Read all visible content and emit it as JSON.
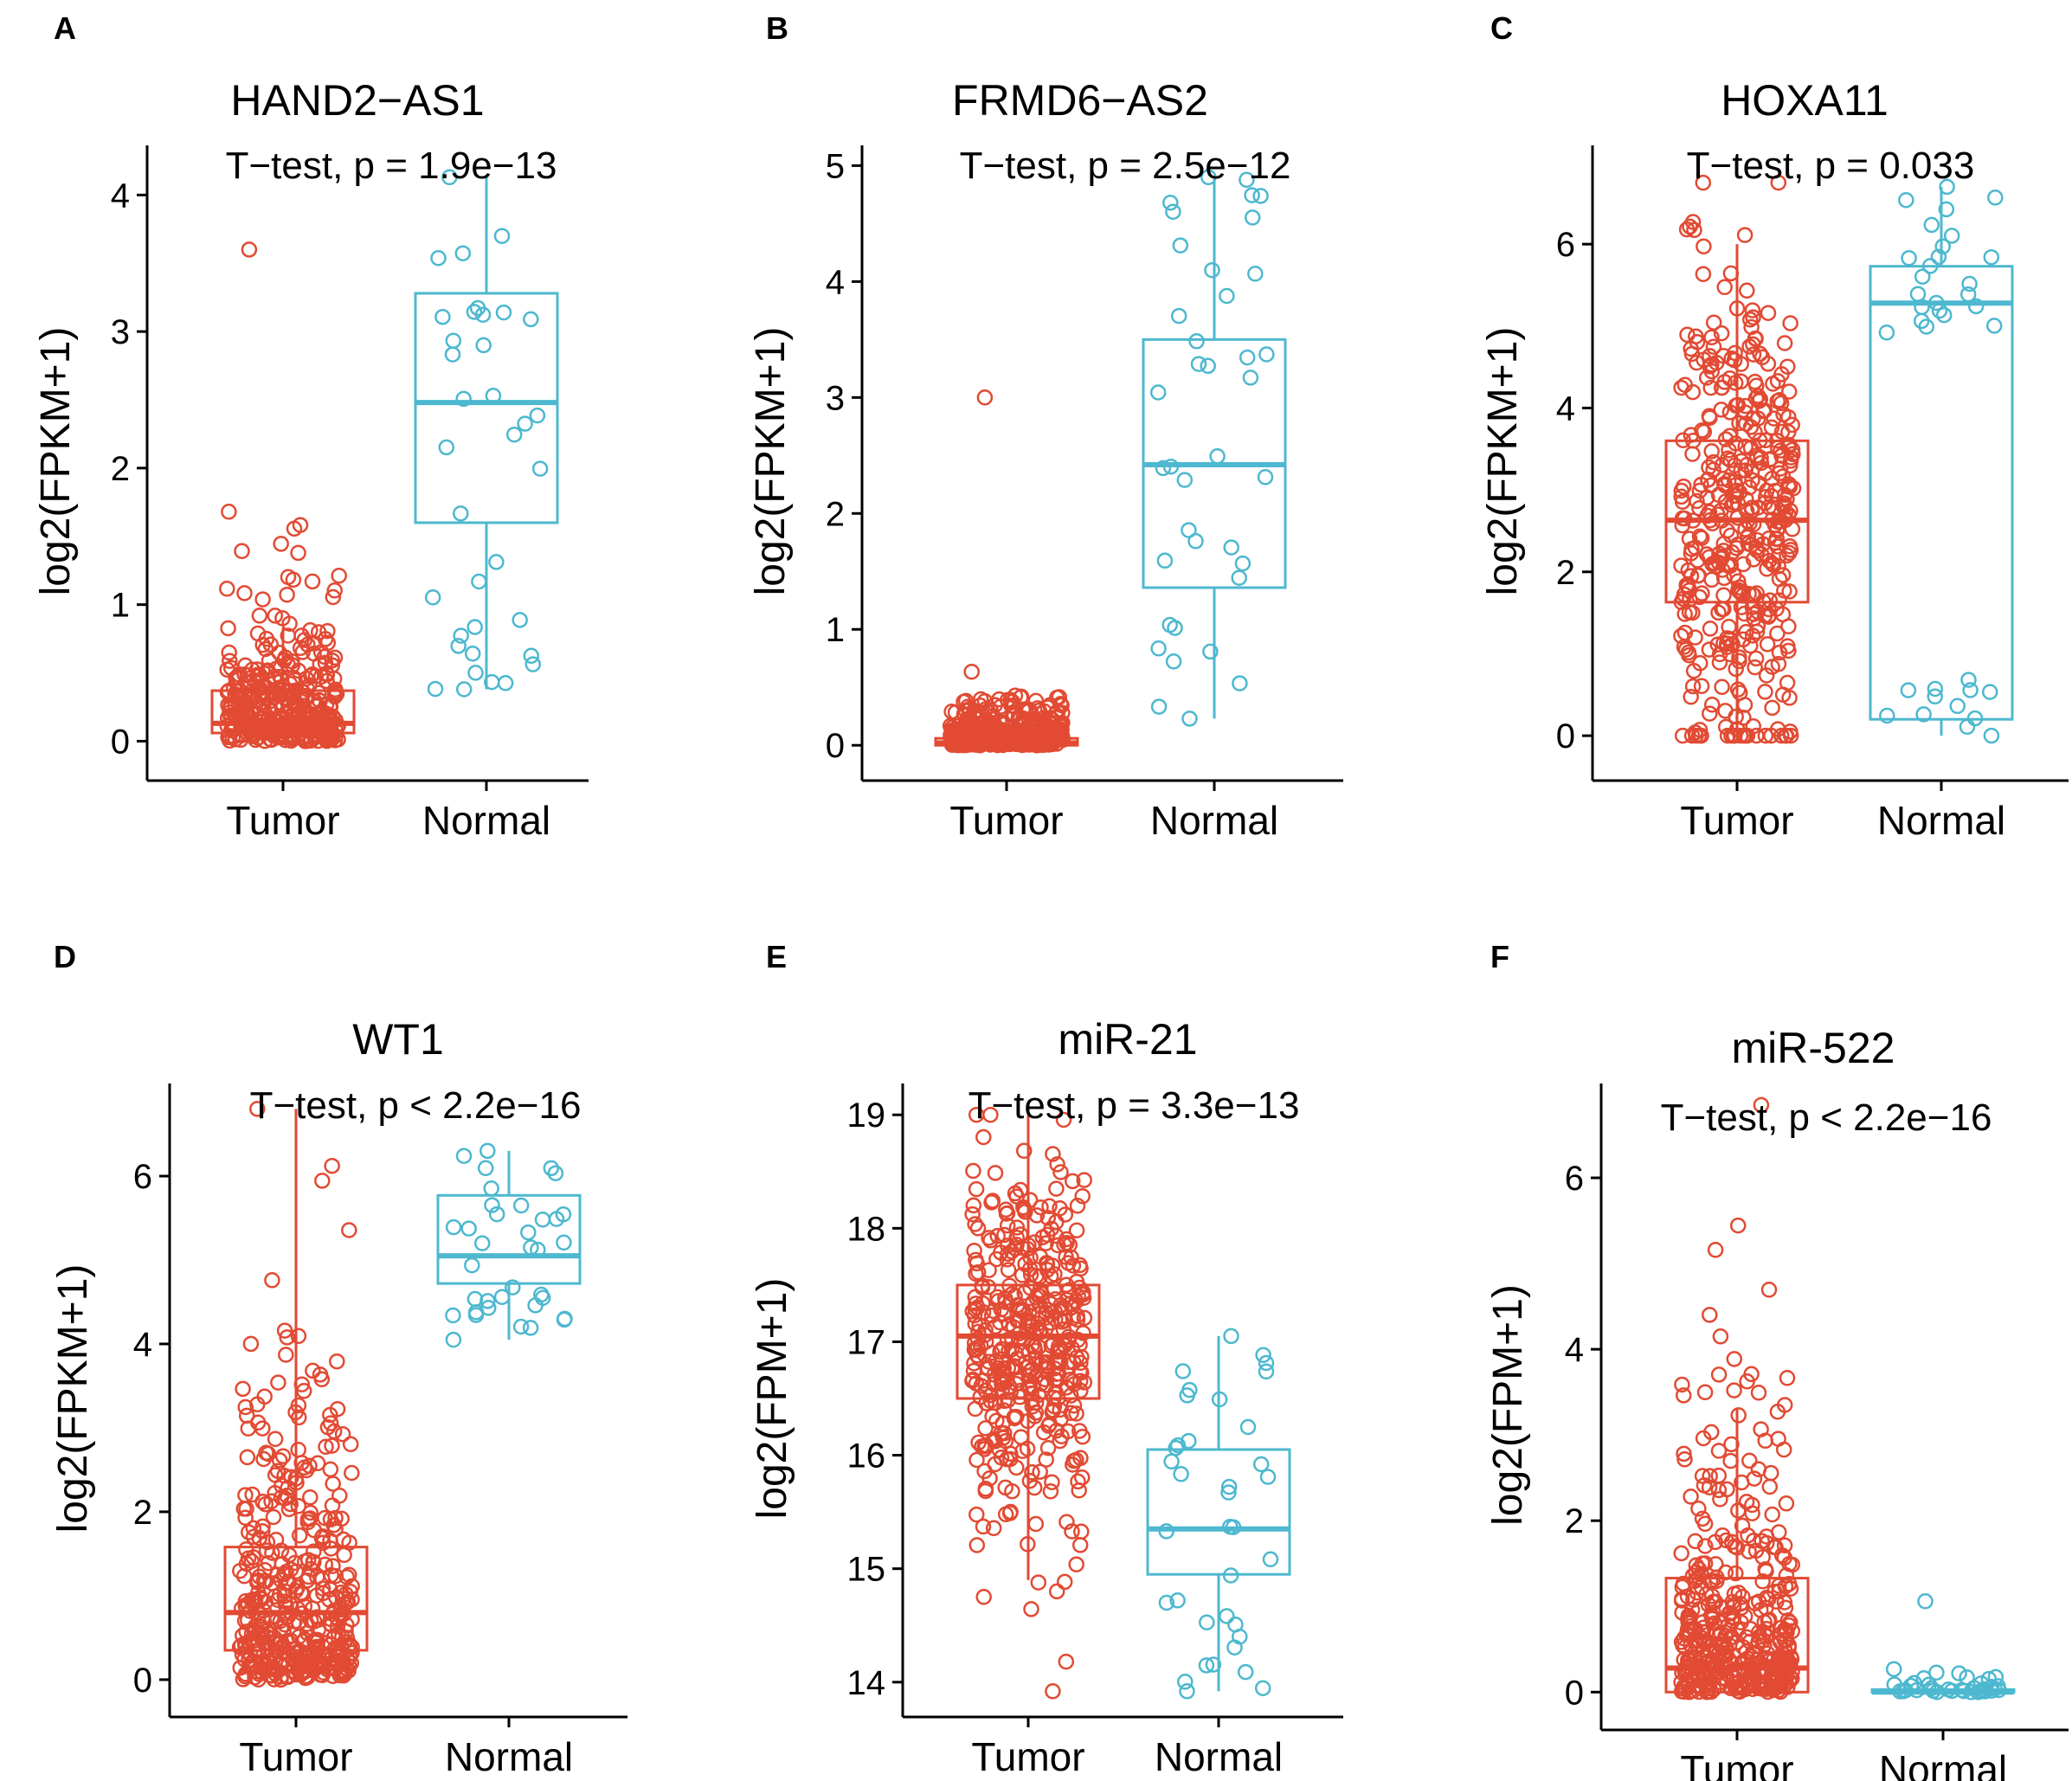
{
  "colors": {
    "tumor": "#E24A33",
    "normal": "#4DB8CF",
    "axis": "#000000"
  },
  "chart_data": [
    {
      "panel_label": "A",
      "type": "box-jitter",
      "title": "HAND2−AS1",
      "annotation": "T−test, p = 1.9e−13",
      "ylabel": "log2(FPKM+1)",
      "ylim": [
        -0.2,
        4.3
      ],
      "yticks": [
        0,
        1,
        2,
        3,
        4
      ],
      "ytick_labels": [
        "0",
        "1",
        "2",
        "3",
        "4"
      ],
      "categories": [
        "Tumor",
        "Normal"
      ],
      "series": [
        {
          "name": "Tumor",
          "color": "tumor",
          "q1": 0.06,
          "median": 0.13,
          "q3": 0.37,
          "whisker_low": 0,
          "whisker_high": 0.83,
          "n": 380,
          "dist": "exp",
          "dist_scale": 0.3,
          "max_point": 3.6,
          "min_point": 0
        },
        {
          "name": "Normal",
          "color": "normal",
          "q1": 1.6,
          "median": 2.48,
          "q3": 3.28,
          "whisker_low": 0.38,
          "whisker_high": 4.13,
          "n": 36,
          "dist": "uniform",
          "max_point": 4.13,
          "min_point": 0.38
        }
      ]
    },
    {
      "panel_label": "B",
      "type": "box-jitter",
      "title": "FRMD6−AS2",
      "annotation": "T−test, p = 2.5e−12",
      "ylabel": "log2(FPKM+1)",
      "ylim": [
        -0.2,
        5.1
      ],
      "yticks": [
        0,
        1,
        2,
        3,
        4,
        5
      ],
      "ytick_labels": [
        "0",
        "1",
        "2",
        "3",
        "4",
        "5"
      ],
      "categories": [
        "Tumor",
        "Normal"
      ],
      "series": [
        {
          "name": "Tumor",
          "color": "tumor",
          "q1": 0.0,
          "median": 0.02,
          "q3": 0.06,
          "whisker_low": 0,
          "whisker_high": 0.15,
          "n": 380,
          "dist": "exp",
          "dist_scale": 0.12,
          "max_point": 3.0,
          "min_point": 0
        },
        {
          "name": "Normal",
          "color": "normal",
          "q1": 1.36,
          "median": 2.42,
          "q3": 3.5,
          "whisker_low": 0.23,
          "whisker_high": 4.9,
          "n": 38,
          "dist": "uniform",
          "max_point": 4.9,
          "min_point": 0.23
        }
      ]
    },
    {
      "panel_label": "C",
      "type": "box-jitter",
      "title": "HOXA11",
      "annotation": "T−test, p = 0.033",
      "ylabel": "log2(FPKM+1)",
      "ylim": [
        -0.4,
        7.1
      ],
      "yticks": [
        0,
        2,
        4,
        6
      ],
      "ytick_labels": [
        "0",
        "2",
        "4",
        "6"
      ],
      "categories": [
        "Tumor",
        "Normal"
      ],
      "series": [
        {
          "name": "Tumor",
          "color": "tumor",
          "q1": 1.63,
          "median": 2.63,
          "q3": 3.6,
          "whisker_low": 0,
          "whisker_high": 6.0,
          "n": 420,
          "dist": "normal",
          "dist_mu": 2.6,
          "dist_sd": 1.5,
          "max_point": 6.75,
          "min_point": 0
        },
        {
          "name": "Normal",
          "color": "normal",
          "q1": 0.2,
          "median": 5.28,
          "q3": 5.73,
          "whisker_low": 0,
          "whisker_high": 6.7,
          "n": 36,
          "dist": "bimodal",
          "max_point": 6.7,
          "min_point": 0
        }
      ]
    },
    {
      "panel_label": "D",
      "type": "box-jitter",
      "title": "WT1",
      "annotation": "T−test, p < 2.2e−16",
      "ylabel": "log2(FPKM+1)",
      "ylim": [
        -0.3,
        7.0
      ],
      "yticks": [
        0,
        2,
        4,
        6
      ],
      "ytick_labels": [
        "0",
        "2",
        "4",
        "6"
      ],
      "categories": [
        "Tumor",
        "Normal"
      ],
      "series": [
        {
          "name": "Tumor",
          "color": "tumor",
          "q1": 0.35,
          "median": 0.8,
          "q3": 1.58,
          "whisker_low": 0,
          "whisker_high": 6.8,
          "n": 420,
          "dist": "exp",
          "dist_scale": 1.1,
          "max_point": 6.8,
          "min_point": 0
        },
        {
          "name": "Normal",
          "color": "normal",
          "q1": 4.72,
          "median": 5.05,
          "q3": 5.77,
          "whisker_low": 4.05,
          "whisker_high": 6.3,
          "n": 36,
          "dist": "uniform",
          "max_point": 6.3,
          "min_point": 4.05
        }
      ]
    },
    {
      "panel_label": "E",
      "type": "box-jitter",
      "title": "miR-21",
      "annotation": "T−test, p = 3.3e−13",
      "ylabel": "log2(FPM+1)",
      "ylim": [
        13.8,
        19.2
      ],
      "yticks": [
        14,
        15,
        16,
        17,
        18,
        19
      ],
      "ytick_labels": [
        "14",
        "15",
        "16",
        "17",
        "18",
        "19"
      ],
      "categories": [
        "Tumor",
        "Normal"
      ],
      "series": [
        {
          "name": "Tumor",
          "color": "tumor",
          "q1": 16.5,
          "median": 17.05,
          "q3": 17.5,
          "whisker_low": 14.9,
          "whisker_high": 19.0,
          "n": 420,
          "dist": "normal",
          "dist_mu": 17.0,
          "dist_sd": 0.75,
          "max_point": 19.0,
          "min_point": 13.92
        },
        {
          "name": "Normal",
          "color": "normal",
          "q1": 14.95,
          "median": 15.35,
          "q3": 16.05,
          "whisker_low": 13.92,
          "whisker_high": 17.05,
          "n": 36,
          "dist": "uniform",
          "max_point": 17.05,
          "min_point": 13.92
        }
      ]
    },
    {
      "panel_label": "F",
      "type": "box-jitter",
      "title": "miR-522",
      "annotation": "T−test, p < 2.2e−16",
      "ylabel": "log2(FPM+1)",
      "ylim": [
        -0.3,
        7.0
      ],
      "yticks": [
        0,
        2,
        4,
        6
      ],
      "ytick_labels": [
        "0",
        "2",
        "4",
        "6"
      ],
      "categories": [
        "Tumor",
        "Normal"
      ],
      "series": [
        {
          "name": "Tumor",
          "color": "tumor",
          "q1": 0.0,
          "median": 0.28,
          "q3": 1.33,
          "whisker_low": 0,
          "whisker_high": 3.3,
          "n": 420,
          "dist": "exp",
          "dist_scale": 0.9,
          "max_point": 6.85,
          "min_point": 0
        },
        {
          "name": "Normal",
          "color": "normal",
          "q1": 0.0,
          "median": 0.0,
          "q3": 0.03,
          "whisker_low": 0,
          "whisker_high": 0.05,
          "n": 36,
          "dist": "exp",
          "dist_scale": 0.08,
          "max_point": 1.06,
          "min_point": 0
        }
      ]
    }
  ]
}
